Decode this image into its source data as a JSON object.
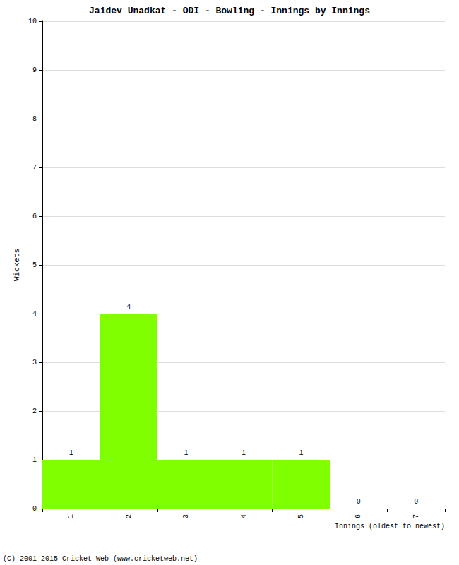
{
  "chart_data": {
    "type": "bar",
    "title": "Jaidev Unadkat - ODI - Bowling - Innings by Innings",
    "x_label": "Innings (oldest to newest)",
    "y_label": "Wickets",
    "footer": "(C) 2001-2015 Cricket Web (www.cricketweb.net)",
    "categories": [
      "1",
      "2",
      "3",
      "4",
      "5",
      "6",
      "7"
    ],
    "values": [
      1,
      4,
      1,
      1,
      1,
      0,
      0
    ],
    "color": "#7fff00",
    "ylim": [
      0,
      10
    ],
    "yticks": [
      0,
      1,
      2,
      3,
      4,
      5,
      6,
      7,
      8,
      9,
      10
    ],
    "grid": true,
    "data_labels": true
  }
}
